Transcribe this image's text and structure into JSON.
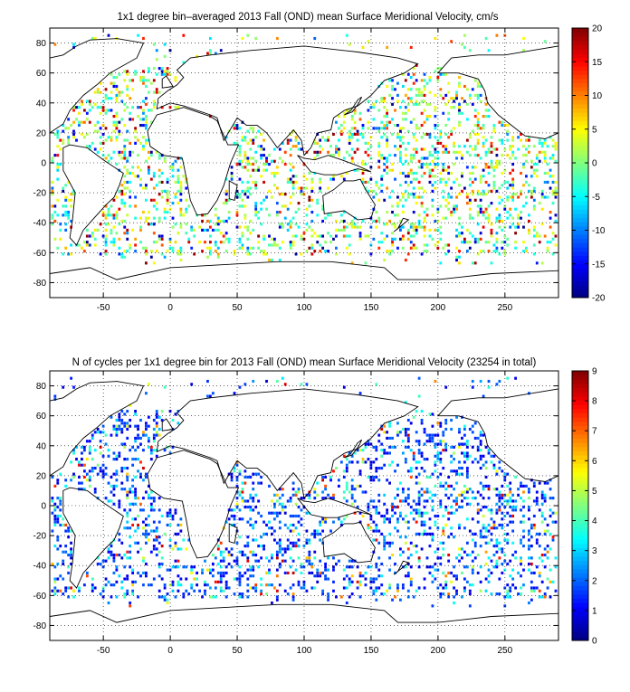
{
  "chart_data": [
    {
      "type": "heatmap",
      "title": "1x1 degree bin–averaged 2013 Fall (OND) mean Surface Meridional Velocity, cm/s",
      "xlabel": "",
      "ylabel": "",
      "xlim": [
        -90,
        290
      ],
      "ylim": [
        -90,
        90
      ],
      "x_ticks": [
        "-50",
        "0",
        "50",
        "100",
        "150",
        "200",
        "250"
      ],
      "x_tick_values": [
        -50,
        0,
        50,
        100,
        150,
        200,
        250
      ],
      "y_ticks": [
        "80",
        "60",
        "40",
        "20",
        "0",
        "-20",
        "-40",
        "-60",
        "-80"
      ],
      "y_tick_values": [
        80,
        60,
        40,
        20,
        0,
        -20,
        -40,
        -60,
        -80
      ],
      "colorbar": {
        "range": [
          -20,
          20
        ],
        "ticks": [
          "20",
          "15",
          "10",
          "5",
          "0",
          "-5",
          "-10",
          "-15",
          "-20"
        ],
        "tick_values": [
          20,
          15,
          10,
          5,
          0,
          -5,
          -10,
          -15,
          -20
        ],
        "colormap": "jet"
      },
      "grid": true,
      "background": "world coastline map with scattered bins"
    },
    {
      "type": "heatmap",
      "title": "N of cycles per 1x1 degree bin for 2013 Fall (OND) mean Surface Meridional Velocity (23254 in total)",
      "xlabel": "",
      "ylabel": "",
      "xlim": [
        -90,
        290
      ],
      "ylim": [
        -90,
        90
      ],
      "x_ticks": [
        "-50",
        "0",
        "50",
        "100",
        "150",
        "200",
        "250"
      ],
      "x_tick_values": [
        -50,
        0,
        50,
        100,
        150,
        200,
        250
      ],
      "y_ticks": [
        "80",
        "60",
        "40",
        "20",
        "0",
        "-20",
        "-40",
        "-60",
        "-80"
      ],
      "y_tick_values": [
        80,
        60,
        40,
        20,
        0,
        -20,
        -40,
        -60,
        -80
      ],
      "colorbar": {
        "range": [
          0,
          9
        ],
        "ticks": [
          "9",
          "8",
          "7",
          "6",
          "5",
          "4",
          "3",
          "2",
          "1",
          "0"
        ],
        "tick_values": [
          9,
          8,
          7,
          6,
          5,
          4,
          3,
          2,
          1,
          0
        ],
        "colormap": "jet"
      },
      "grid": true,
      "total_count": 23254,
      "background": "world coastline map with scattered bins"
    }
  ]
}
